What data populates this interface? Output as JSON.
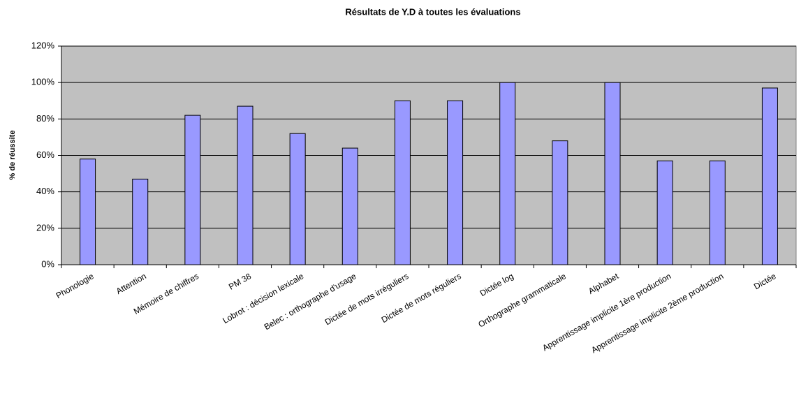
{
  "chart_data": {
    "type": "bar",
    "title": "Résultats de Y.D à toutes les évaluations",
    "y_label": "% de réussite",
    "categories": [
      "Phonologie",
      "Attention",
      "Mémoire de chiffres",
      "PM 38",
      "Lobrot : décision lexicale",
      "Belec : orthographe d'usage",
      "Dictée de mots irréguliers",
      "Dictée de mots réguliers",
      "Dictée log",
      "Orthographe grammaticale",
      "Alphabet",
      "Apprentissage implicite 1ère production",
      "Apprentissage implicite 2ème production",
      "Dictée"
    ],
    "values": [
      58,
      47,
      82,
      87,
      72,
      64,
      90,
      90,
      100,
      68,
      100,
      57,
      57,
      97
    ],
    "color": "#9999ff",
    "ylim": [
      0,
      120
    ],
    "yticks": [
      {
        "value": 0,
        "label": "0%"
      },
      {
        "value": 20,
        "label": "20%"
      },
      {
        "value": 40,
        "label": "40%"
      },
      {
        "value": 60,
        "label": "60%"
      },
      {
        "value": 80,
        "label": "80%"
      },
      {
        "value": 100,
        "label": "100%"
      },
      {
        "value": 120,
        "label": "120%"
      }
    ],
    "grid": true
  }
}
